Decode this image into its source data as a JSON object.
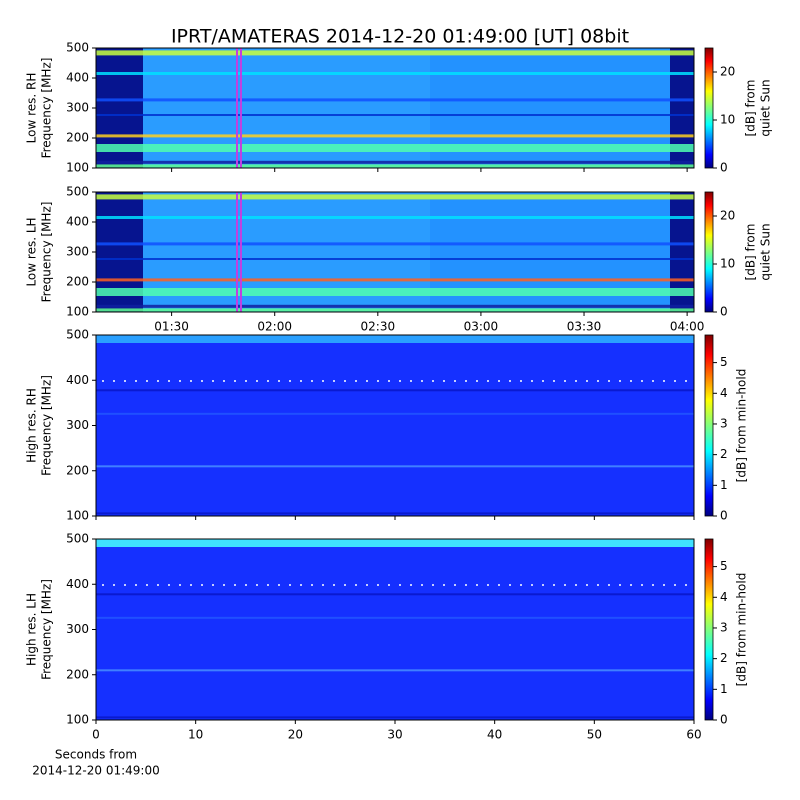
{
  "title": "IPRT/AMATERAS 2014-12-20 01:49:00 [UT]   08bit",
  "chart_data": [
    {
      "type": "heatmap",
      "ylabel": [
        "Low res. RH",
        "Frequency [MHz]"
      ],
      "xlim": [
        68,
        242
      ],
      "xticks": [
        90,
        120,
        150,
        180,
        210,
        240
      ],
      "ylim": [
        100,
        500
      ],
      "yticks": [
        100,
        200,
        300,
        400,
        500
      ],
      "clim": [
        0,
        25
      ],
      "cticks": [
        0,
        10,
        20
      ],
      "clabel": [
        "[dB] from",
        "quiet Sun"
      ]
    },
    {
      "type": "heatmap",
      "ylabel": [
        "Low res. LH",
        "Frequency [MHz]"
      ],
      "xlim": [
        68,
        242
      ],
      "xticks": [
        {
          "value": 90,
          "label": "01:30"
        },
        {
          "value": 120,
          "label": "02:00"
        },
        {
          "value": 150,
          "label": "02:30"
        },
        {
          "value": 180,
          "label": "03:00"
        },
        {
          "value": 210,
          "label": "03:30"
        },
        {
          "value": 240,
          "label": "04:00"
        }
      ],
      "ylim": [
        100,
        500
      ],
      "yticks": [
        100,
        200,
        300,
        400,
        500
      ],
      "clim": [
        0,
        25
      ],
      "cticks": [
        0,
        10,
        20
      ],
      "clabel": [
        "[dB] from",
        "quiet Sun"
      ]
    },
    {
      "type": "heatmap",
      "ylabel": [
        "High res. RH",
        "Frequency [MHz]"
      ],
      "xlim": [
        0,
        60
      ],
      "xticks": [
        0,
        10,
        20,
        30,
        40,
        50,
        60
      ],
      "ylim": [
        100,
        500
      ],
      "yticks": [
        100,
        200,
        300,
        400,
        500
      ],
      "clim": [
        0,
        5.9
      ],
      "cticks": [
        0,
        1,
        2,
        3,
        4,
        5
      ],
      "clabel": [
        "[dB] from min-hold"
      ]
    },
    {
      "type": "heatmap",
      "ylabel": [
        "High res. LH",
        "Frequency [MHz]"
      ],
      "xlabel": [
        "Seconds from",
        "2014-12-20 01:49:00"
      ],
      "xlim": [
        0,
        60
      ],
      "xticks": [
        0,
        10,
        20,
        30,
        40,
        50,
        60
      ],
      "ylim": [
        100,
        500
      ],
      "yticks": [
        100,
        200,
        300,
        400,
        500
      ],
      "clim": [
        0,
        5.9
      ],
      "cticks": [
        0,
        1,
        2,
        3,
        4,
        5
      ],
      "clabel": [
        "[dB] from min-hold"
      ]
    }
  ]
}
